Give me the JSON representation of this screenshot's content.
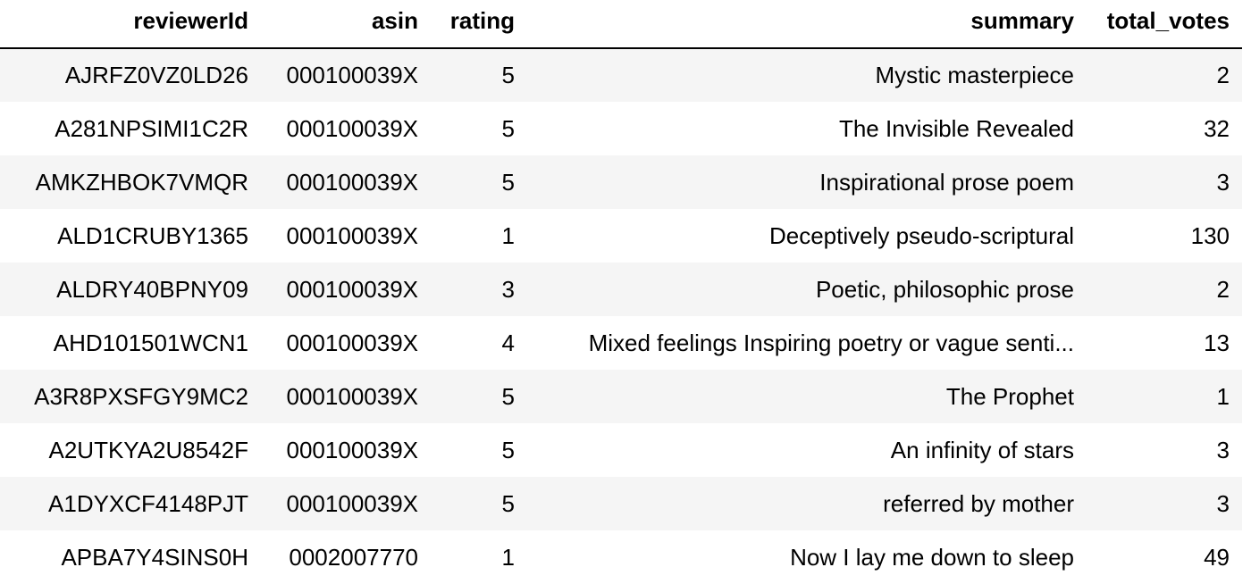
{
  "table": {
    "columns": [
      "reviewerId",
      "asin",
      "rating",
      "summary",
      "total_votes"
    ],
    "rows": [
      {
        "reviewerId": "AJRFZ0VZ0LD26",
        "asin": "000100039X",
        "rating": "5",
        "summary": "Mystic masterpiece",
        "total_votes": "2"
      },
      {
        "reviewerId": "A281NPSIMI1C2R",
        "asin": "000100039X",
        "rating": "5",
        "summary": "The Invisible Revealed",
        "total_votes": "32"
      },
      {
        "reviewerId": "AMKZHBOK7VMQR",
        "asin": "000100039X",
        "rating": "5",
        "summary": "Inspirational prose poem",
        "total_votes": "3"
      },
      {
        "reviewerId": "ALD1CRUBY1365",
        "asin": "000100039X",
        "rating": "1",
        "summary": "Deceptively pseudo-scriptural",
        "total_votes": "130"
      },
      {
        "reviewerId": "ALDRY40BPNY09",
        "asin": "000100039X",
        "rating": "3",
        "summary": "Poetic, philosophic prose",
        "total_votes": "2"
      },
      {
        "reviewerId": "AHD101501WCN1",
        "asin": "000100039X",
        "rating": "4",
        "summary": "Mixed feelings Inspiring poetry or vague senti...",
        "total_votes": "13"
      },
      {
        "reviewerId": "A3R8PXSFGY9MC2",
        "asin": "000100039X",
        "rating": "5",
        "summary": "The Prophet",
        "total_votes": "1"
      },
      {
        "reviewerId": "A2UTKYA2U8542F",
        "asin": "000100039X",
        "rating": "5",
        "summary": "An infinity of stars",
        "total_votes": "3"
      },
      {
        "reviewerId": "A1DYXCF4148PJT",
        "asin": "000100039X",
        "rating": "5",
        "summary": "referred by mother",
        "total_votes": "3"
      },
      {
        "reviewerId": "APBA7Y4SINS0H",
        "asin": "0002007770",
        "rating": "1",
        "summary": "Now I lay me down to sleep",
        "total_votes": "49"
      }
    ]
  },
  "colors": {
    "striped_row": "#f5f5f5",
    "header_border": "#000000"
  }
}
